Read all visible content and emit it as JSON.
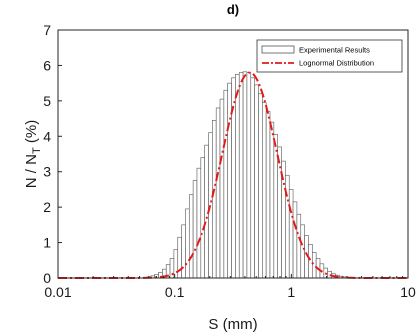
{
  "chart_data": {
    "type": "bar",
    "title": "d)",
    "xlabel": "S (mm)",
    "ylabel_main": "N / N",
    "ylabel_sub": "T",
    "ylabel_unit": " (%)",
    "x_scale": "log",
    "xlim": [
      0.01,
      10
    ],
    "ylim": [
      0,
      7
    ],
    "x_ticks": [
      0.01,
      0.1,
      1,
      10
    ],
    "x_tick_labels": [
      "0.01",
      "0.1",
      "1",
      "10"
    ],
    "y_ticks": [
      0,
      1,
      2,
      3,
      4,
      5,
      6,
      7
    ],
    "y_tick_labels": [
      "0",
      "1",
      "2",
      "3",
      "4",
      "5",
      "6",
      "7"
    ],
    "grid": false,
    "legend_position": "top-right",
    "series": [
      {
        "name": "Experimental Results",
        "kind": "histogram",
        "bin_width_log10": 0.033,
        "bin_centers": [
          0.0602,
          0.0649,
          0.07,
          0.0755,
          0.0815,
          0.0879,
          0.0948,
          0.1023,
          0.1104,
          0.1191,
          0.1285,
          0.1386,
          0.1495,
          0.1613,
          0.174,
          0.1877,
          0.2025,
          0.2184,
          0.2357,
          0.2542,
          0.2743,
          0.2959,
          0.3192,
          0.3444,
          0.3715,
          0.4008,
          0.4324,
          0.4665,
          0.5033,
          0.5429,
          0.5857,
          0.6319,
          0.6817,
          0.7355,
          0.7935,
          0.856,
          0.9235,
          0.9963,
          1.0748,
          1.1596,
          1.251,
          1.3497,
          1.4561,
          1.5709,
          1.6947,
          1.8284,
          1.9725,
          2.1281,
          2.2959,
          2.4769,
          2.6722,
          2.8829,
          3.1103,
          3.3555
        ],
        "values": [
          0.03,
          0.06,
          0.1,
          0.16,
          0.25,
          0.38,
          0.55,
          0.8,
          1.15,
          1.5,
          1.95,
          2.35,
          2.75,
          3.1,
          3.4,
          3.75,
          4.1,
          4.45,
          4.8,
          5.05,
          5.3,
          5.5,
          5.65,
          5.75,
          5.8,
          5.82,
          5.8,
          5.65,
          5.45,
          5.2,
          4.95,
          4.7,
          4.4,
          4.05,
          3.7,
          3.3,
          2.9,
          2.5,
          2.15,
          1.8,
          1.5,
          1.2,
          0.95,
          0.72,
          0.55,
          0.4,
          0.28,
          0.19,
          0.12,
          0.08,
          0.05,
          0.03,
          0.02,
          0.01
        ],
        "color": "#ffffff",
        "edge_color": "#555555"
      },
      {
        "name": "Lognormal Distribution",
        "kind": "line",
        "distribution": "lognormal",
        "peak": 5.8,
        "mode_mm": 0.44,
        "sigma_log10": 0.235,
        "color": "#e8191b",
        "line_style": "dash-dot"
      }
    ]
  }
}
